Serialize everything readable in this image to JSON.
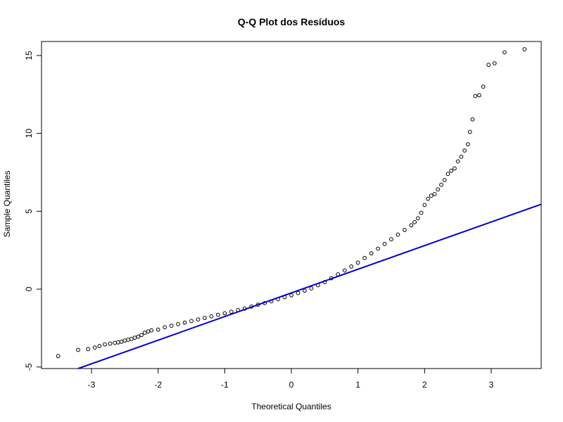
{
  "chart_data": {
    "type": "scatter",
    "title": "Q-Q Plot dos Resíduos",
    "xlabel": "Theoretical Quantiles",
    "ylabel": "Sample Quantiles",
    "xlim": [
      -3.75,
      3.75
    ],
    "ylim": [
      -5.1,
      15.9
    ],
    "x_ticks": [
      -3,
      -2,
      -1,
      0,
      1,
      2,
      3
    ],
    "y_ticks": [
      -5,
      0,
      5,
      10,
      15
    ],
    "grid": false,
    "reference_line": {
      "color": "#0000cc",
      "points": [
        [
          -3.2,
          -5.1
        ],
        [
          3.75,
          5.45
        ]
      ]
    },
    "series": [
      {
        "marker": "open-circle",
        "color": "#000000",
        "points": [
          [
            -3.5,
            -4.3
          ],
          [
            -3.2,
            -3.9
          ],
          [
            -3.05,
            -3.85
          ],
          [
            -2.95,
            -3.75
          ],
          [
            -2.88,
            -3.65
          ],
          [
            -2.8,
            -3.55
          ],
          [
            -2.72,
            -3.5
          ],
          [
            -2.65,
            -3.45
          ],
          [
            -2.6,
            -3.42
          ],
          [
            -2.55,
            -3.38
          ],
          [
            -2.5,
            -3.3
          ],
          [
            -2.45,
            -3.25
          ],
          [
            -2.4,
            -3.2
          ],
          [
            -2.35,
            -3.12
          ],
          [
            -2.3,
            -3.05
          ],
          [
            -2.25,
            -2.95
          ],
          [
            -2.2,
            -2.8
          ],
          [
            -2.15,
            -2.72
          ],
          [
            -2.1,
            -2.65
          ],
          [
            -2.0,
            -2.6
          ],
          [
            -1.9,
            -2.45
          ],
          [
            -1.8,
            -2.35
          ],
          [
            -1.7,
            -2.25
          ],
          [
            -1.6,
            -2.15
          ],
          [
            -1.5,
            -2.05
          ],
          [
            -1.4,
            -1.95
          ],
          [
            -1.3,
            -1.85
          ],
          [
            -1.2,
            -1.75
          ],
          [
            -1.1,
            -1.65
          ],
          [
            -1.0,
            -1.55
          ],
          [
            -0.9,
            -1.45
          ],
          [
            -0.8,
            -1.35
          ],
          [
            -0.7,
            -1.25
          ],
          [
            -0.6,
            -1.12
          ],
          [
            -0.5,
            -1.0
          ],
          [
            -0.4,
            -0.9
          ],
          [
            -0.3,
            -0.78
          ],
          [
            -0.2,
            -0.65
          ],
          [
            -0.1,
            -0.52
          ],
          [
            0.0,
            -0.4
          ],
          [
            0.1,
            -0.25
          ],
          [
            0.2,
            -0.1
          ],
          [
            0.3,
            0.05
          ],
          [
            0.4,
            0.25
          ],
          [
            0.5,
            0.45
          ],
          [
            0.6,
            0.7
          ],
          [
            0.7,
            0.95
          ],
          [
            0.8,
            1.2
          ],
          [
            0.9,
            1.45
          ],
          [
            1.0,
            1.7
          ],
          [
            1.1,
            2.0
          ],
          [
            1.2,
            2.3
          ],
          [
            1.3,
            2.6
          ],
          [
            1.4,
            2.9
          ],
          [
            1.5,
            3.2
          ],
          [
            1.6,
            3.5
          ],
          [
            1.7,
            3.8
          ],
          [
            1.8,
            4.1
          ],
          [
            1.85,
            4.3
          ],
          [
            1.9,
            4.55
          ],
          [
            1.95,
            4.9
          ],
          [
            2.0,
            5.4
          ],
          [
            2.05,
            5.8
          ],
          [
            2.1,
            6.0
          ],
          [
            2.15,
            6.1
          ],
          [
            2.2,
            6.4
          ],
          [
            2.25,
            6.7
          ],
          [
            2.3,
            7.0
          ],
          [
            2.35,
            7.4
          ],
          [
            2.4,
            7.6
          ],
          [
            2.45,
            7.75
          ],
          [
            2.5,
            8.2
          ],
          [
            2.55,
            8.5
          ],
          [
            2.6,
            8.9
          ],
          [
            2.65,
            9.3
          ],
          [
            2.68,
            10.1
          ],
          [
            2.72,
            10.9
          ],
          [
            2.76,
            12.4
          ],
          [
            2.82,
            12.45
          ],
          [
            2.88,
            13.0
          ],
          [
            2.96,
            14.4
          ],
          [
            3.05,
            14.5
          ],
          [
            3.2,
            15.2
          ],
          [
            3.5,
            15.4
          ]
        ]
      }
    ]
  }
}
